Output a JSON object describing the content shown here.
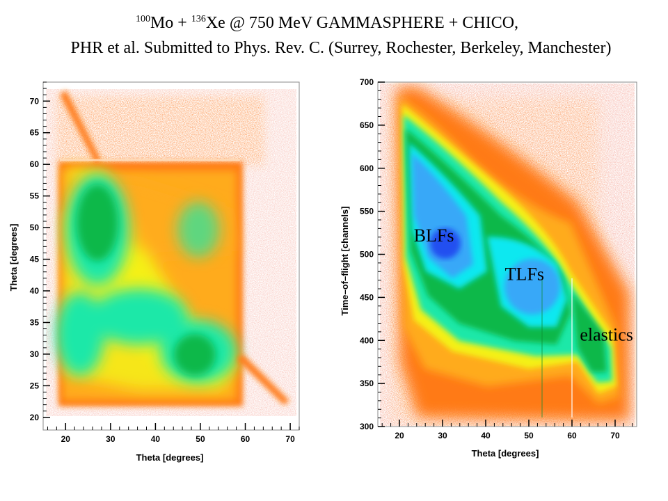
{
  "header": {
    "line1_sup_a": "100",
    "line1_a": "Mo + ",
    "line1_sup_b": "136",
    "line1_b": "Xe @ 750 MeV GAMMASPHERE + CHICO,",
    "line2": "PHR et al. Submitted to Phys. Rev. C. (Surrey, Rochester, Berkeley, Manchester)"
  },
  "colors": {
    "red": "#e8442a",
    "orange": "#ff7a18",
    "light_orange": "#ffab1a",
    "yellow": "#f4f018",
    "teal": "#1de8a8",
    "green": "#0fb84a",
    "dark_green": "#0a8c30",
    "cyan": "#10e8f0",
    "light_blue": "#38a8f8",
    "blue": "#2050f0"
  },
  "chart_data": [
    {
      "type": "heatmap",
      "xlabel": "Theta [degrees]",
      "ylabel": "Theta [degrees]",
      "xlim": [
        15,
        72
      ],
      "ylim": [
        18,
        73
      ],
      "xticks": [
        20,
        30,
        40,
        50,
        60,
        70
      ],
      "yticks": [
        20,
        25,
        30,
        35,
        40,
        45,
        50,
        55,
        60,
        65,
        70
      ]
    },
    {
      "type": "heatmap",
      "xlabel": "Theta [degrees]",
      "ylabel": "Time–of–flight [channels]",
      "xlim": [
        15,
        75
      ],
      "ylim": [
        300,
        700
      ],
      "xticks": [
        20,
        30,
        40,
        50,
        60,
        70
      ],
      "yticks": [
        300,
        350,
        400,
        450,
        500,
        550,
        600,
        650,
        700
      ],
      "annotations": [
        {
          "text": "BLFs",
          "x": 28,
          "y": 515
        },
        {
          "text": "TLFs",
          "x": 49,
          "y": 470
        },
        {
          "text": "elastics",
          "x": 68,
          "y": 400
        }
      ]
    }
  ]
}
